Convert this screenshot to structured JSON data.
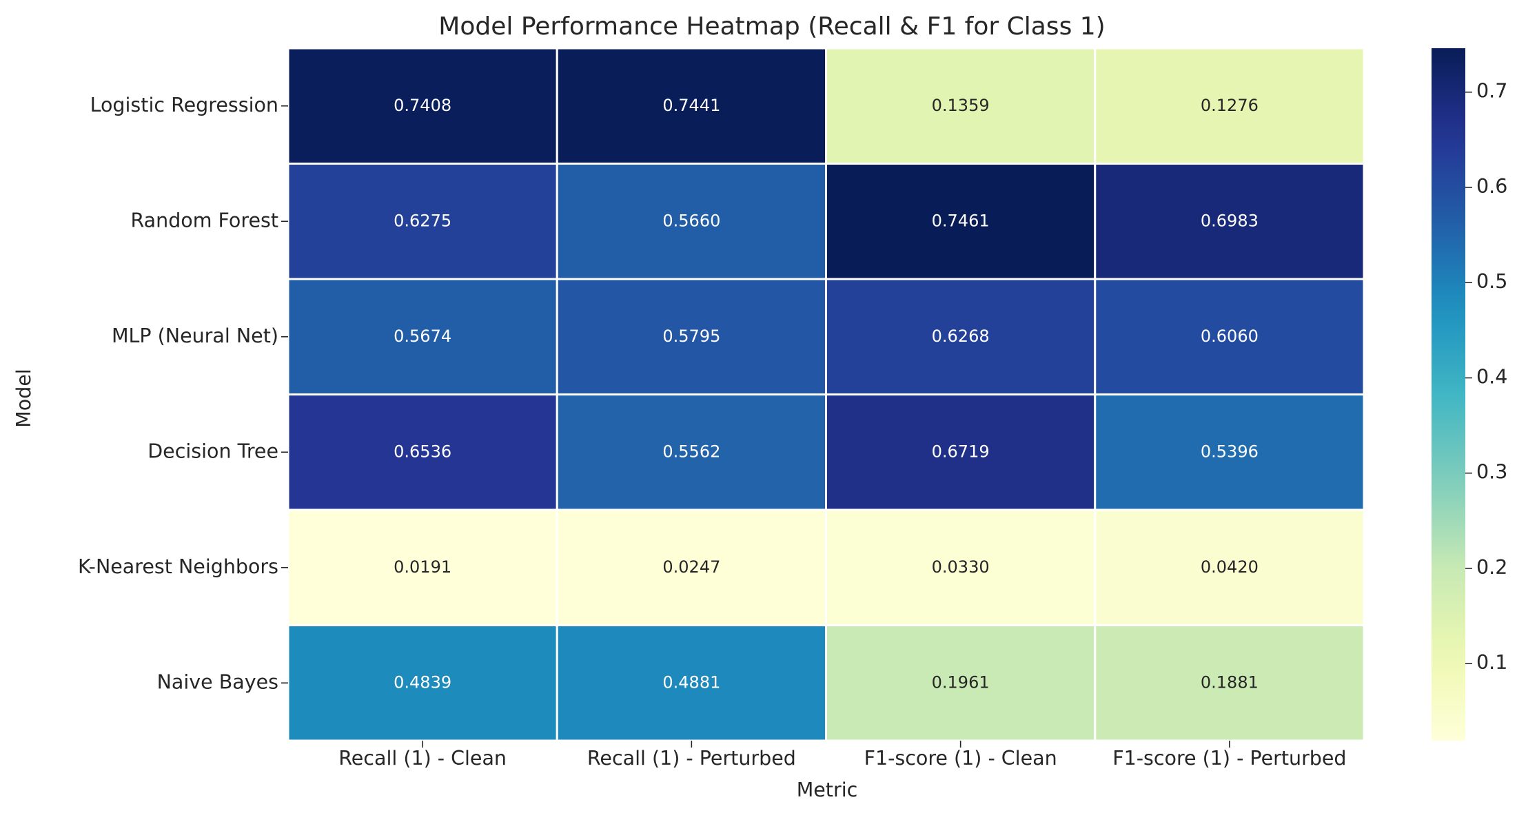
{
  "chart_data": {
    "type": "heatmap",
    "title": "Model Performance Heatmap (Recall & F1 for Class 1)",
    "xlabel": "Metric",
    "ylabel": "Model",
    "columns": [
      "Recall (1) - Clean",
      "Recall (1) - Perturbed",
      "F1-score (1) - Clean",
      "F1-score (1) - Perturbed"
    ],
    "rows": [
      "Logistic Regression",
      "Random Forest",
      "MLP (Neural Net)",
      "Decision Tree",
      "K-Nearest Neighbors",
      "Naive Bayes"
    ],
    "values": [
      [
        0.7408,
        0.7441,
        0.1359,
        0.1276
      ],
      [
        0.6275,
        0.566,
        0.7461,
        0.6983
      ],
      [
        0.5674,
        0.5795,
        0.6268,
        0.606
      ],
      [
        0.6536,
        0.5562,
        0.6719,
        0.5396
      ],
      [
        0.0191,
        0.0247,
        0.033,
        0.042
      ],
      [
        0.4839,
        0.4881,
        0.1961,
        0.1881
      ]
    ],
    "value_labels": [
      [
        "0.7408",
        "0.7441",
        "0.1359",
        "0.1276"
      ],
      [
        "0.6275",
        "0.5660",
        "0.7461",
        "0.6983"
      ],
      [
        "0.5674",
        "0.5795",
        "0.6268",
        "0.6060"
      ],
      [
        "0.6536",
        "0.5562",
        "0.6719",
        "0.5396"
      ],
      [
        "0.0191",
        "0.0247",
        "0.0330",
        "0.0420"
      ],
      [
        "0.4839",
        "0.4881",
        "0.1961",
        "0.1881"
      ]
    ],
    "colormap": "YlGnBu",
    "color_range": [
      0.0191,
      0.7461
    ],
    "colorbar_ticks": [
      0.1,
      0.2,
      0.3,
      0.4,
      0.5,
      0.6,
      0.7
    ],
    "colorbar_tick_labels": [
      "0.1",
      "0.2",
      "0.3",
      "0.4",
      "0.5",
      "0.6",
      "0.7"
    ],
    "grid": false
  }
}
